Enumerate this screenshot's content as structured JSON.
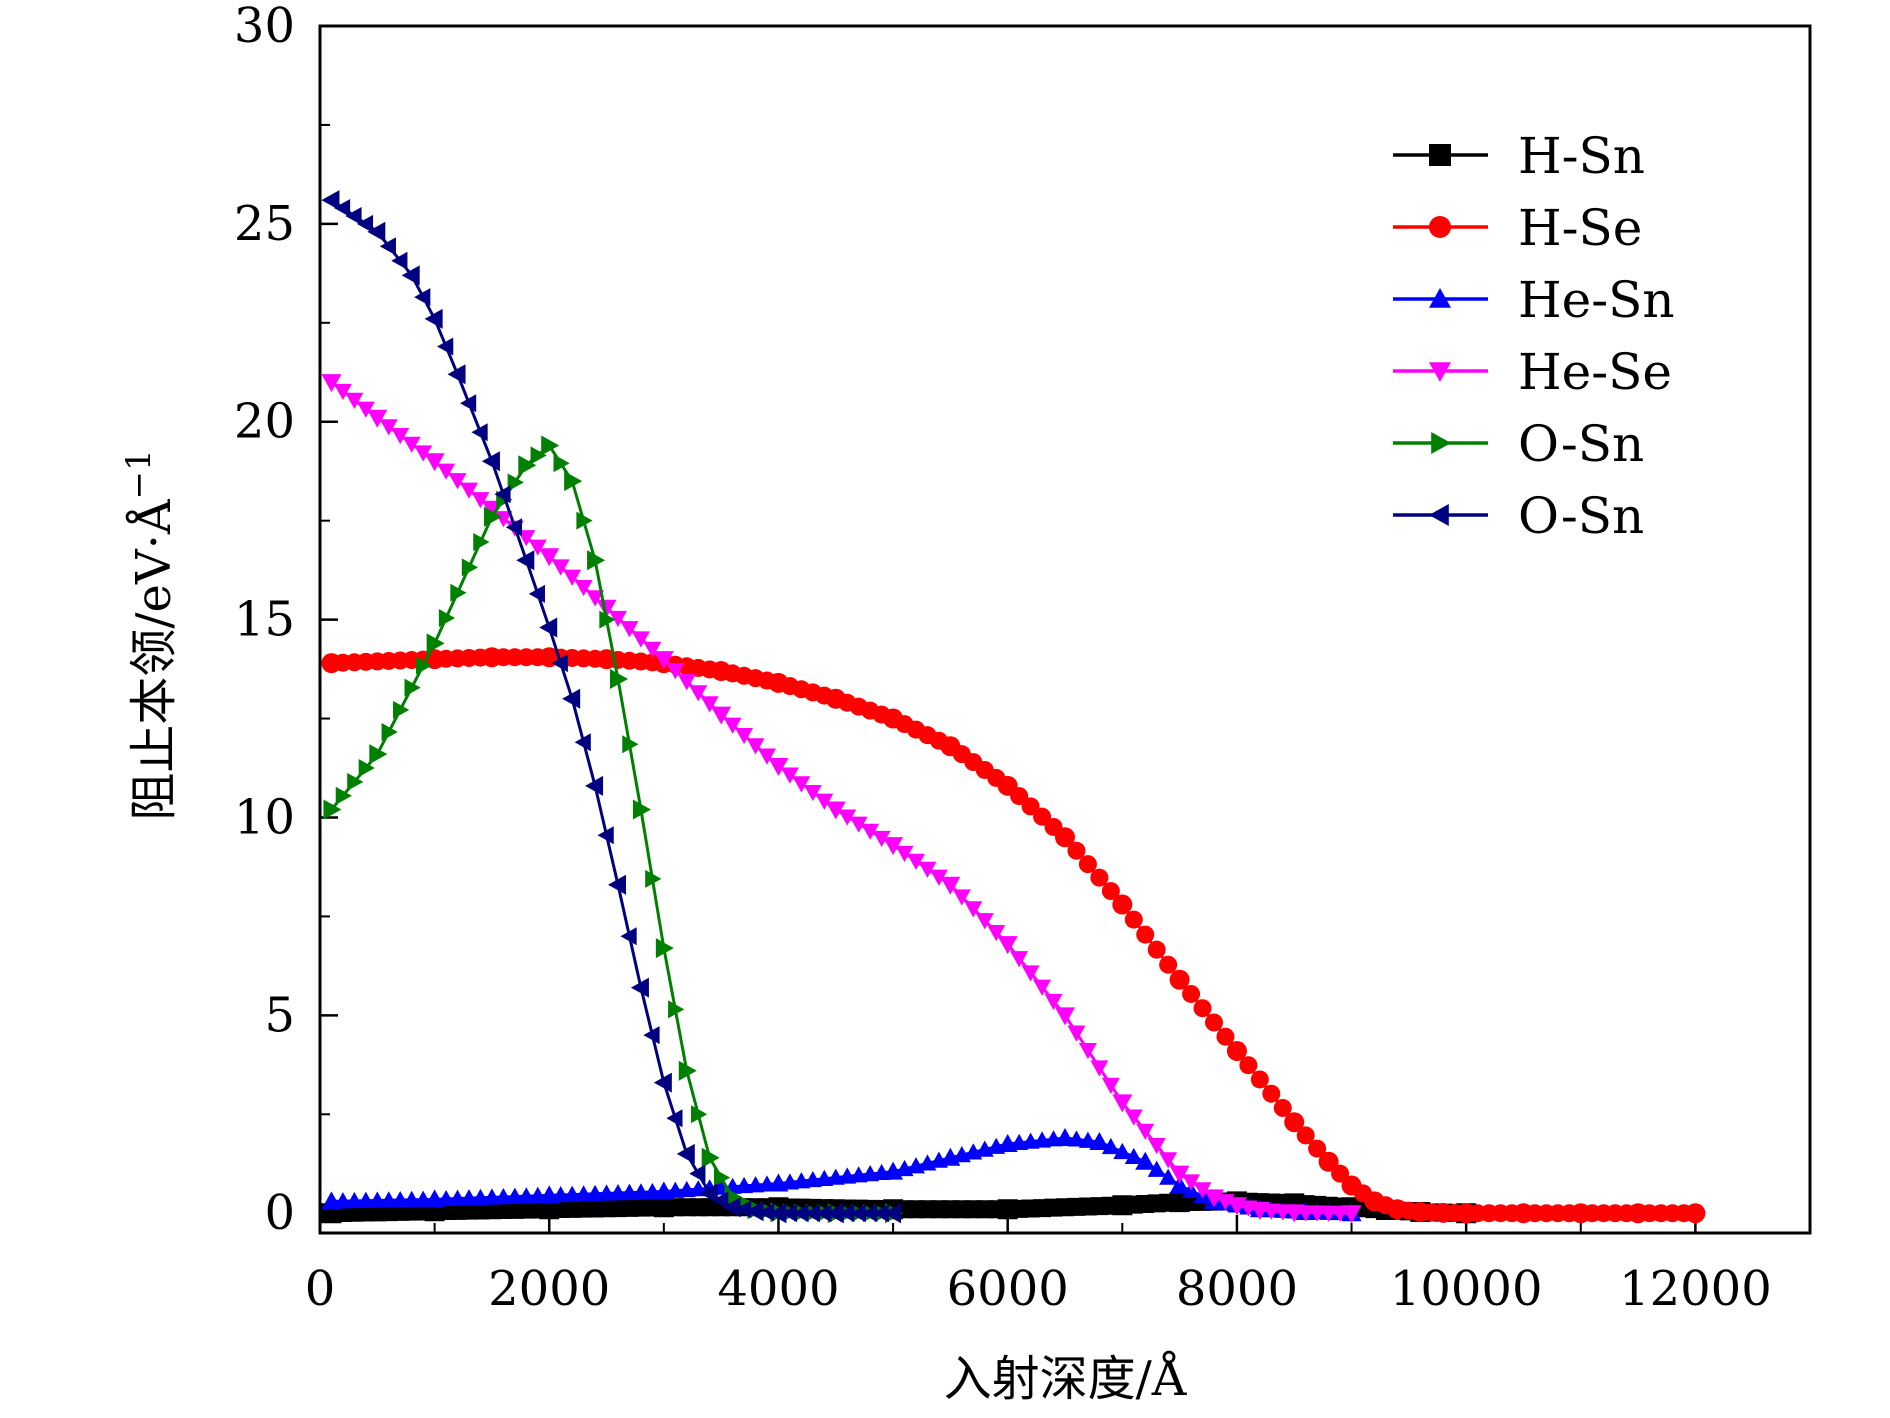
{
  "chart_data": {
    "type": "line",
    "title": "",
    "xlabel": "入射深度/Å",
    "ylabel": "阻止本领/eV·Å",
    "ylabel_superscript": "−1",
    "xlim": [
      0,
      13000
    ],
    "ylim": [
      -0.5,
      30
    ],
    "xticks": [
      0,
      2000,
      4000,
      6000,
      8000,
      10000,
      12000
    ],
    "xtick_labels": [
      "0",
      "2000",
      "4000",
      "6000",
      "8000",
      "10000",
      "12000"
    ],
    "yticks": [
      0,
      5,
      10,
      15,
      20,
      25,
      30
    ],
    "ytick_labels": [
      "0",
      "5",
      "10",
      "15",
      "20",
      "25",
      "30"
    ],
    "grid": false,
    "legend_position": "top-right",
    "series": [
      {
        "name": "H-Sn",
        "color": "#000000",
        "marker": "square",
        "x": [
          100,
          1000,
          2000,
          3000,
          4000,
          5000,
          6000,
          7000,
          7500,
          8000,
          8500,
          9000,
          9300,
          9600,
          10000
        ],
        "y": [
          0.0,
          0.05,
          0.1,
          0.15,
          0.15,
          0.1,
          0.1,
          0.2,
          0.28,
          0.3,
          0.25,
          0.15,
          0.08,
          0.03,
          0.0
        ]
      },
      {
        "name": "H-Se",
        "color": "#ff0000",
        "marker": "circle",
        "x": [
          100,
          1000,
          1500,
          2000,
          2500,
          3000,
          3500,
          4000,
          4500,
          5000,
          5500,
          6000,
          6500,
          7000,
          7500,
          8000,
          8500,
          8800,
          9000,
          9200,
          9400,
          9600,
          9800,
          10000,
          10500,
          11000,
          11500,
          12000
        ],
        "y": [
          13.9,
          14.0,
          14.05,
          14.05,
          14.0,
          13.9,
          13.7,
          13.4,
          13.0,
          12.5,
          11.8,
          10.8,
          9.5,
          7.8,
          5.9,
          4.1,
          2.3,
          1.3,
          0.7,
          0.3,
          0.1,
          0.03,
          0.01,
          0.0,
          0.0,
          0.0,
          0.0,
          0.0
        ]
      },
      {
        "name": "He-Sn",
        "color": "#0000ff",
        "marker": "triangle-up",
        "x": [
          100,
          1000,
          2000,
          3000,
          4000,
          5000,
          5500,
          6000,
          6500,
          6800,
          7200,
          7500,
          7800,
          8200,
          8600,
          9000
        ],
        "y": [
          0.3,
          0.35,
          0.45,
          0.55,
          0.75,
          1.05,
          1.4,
          1.75,
          1.9,
          1.8,
          1.3,
          0.7,
          0.3,
          0.1,
          0.03,
          0.0
        ]
      },
      {
        "name": "He-Se",
        "color": "#ff00ff",
        "marker": "triangle-down",
        "x": [
          100,
          500,
          1000,
          1500,
          2000,
          2500,
          3000,
          3500,
          4000,
          4500,
          5000,
          5500,
          6000,
          6500,
          7000,
          7500,
          7800,
          8000,
          8200,
          8500,
          9000
        ],
        "y": [
          21.0,
          20.1,
          19.0,
          17.8,
          16.6,
          15.3,
          14.0,
          12.6,
          11.3,
          10.2,
          9.3,
          8.3,
          6.8,
          5.0,
          2.8,
          1.0,
          0.4,
          0.2,
          0.08,
          0.02,
          0.0
        ]
      },
      {
        "name": "O-Sn",
        "color": "#008000",
        "marker": "triangle-right",
        "x": [
          100,
          500,
          1000,
          1500,
          1800,
          2000,
          2200,
          2400,
          2600,
          2800,
          3000,
          3200,
          3400,
          3600,
          3800,
          4000,
          4500,
          5000
        ],
        "y": [
          10.2,
          11.6,
          14.4,
          17.6,
          18.9,
          19.4,
          18.5,
          16.5,
          13.5,
          10.2,
          6.7,
          3.6,
          1.4,
          0.4,
          0.1,
          0.02,
          0.0,
          0.0
        ]
      },
      {
        "name": "O-Sn",
        "color": "#000080",
        "marker": "triangle-left",
        "x": [
          100,
          500,
          800,
          1000,
          1200,
          1500,
          1800,
          2000,
          2200,
          2400,
          2600,
          2800,
          3000,
          3200,
          3400,
          3600,
          3800,
          4000,
          4500,
          5000
        ],
        "y": [
          25.6,
          24.8,
          23.7,
          22.6,
          21.2,
          19.0,
          16.5,
          14.8,
          13.0,
          10.8,
          8.3,
          5.7,
          3.3,
          1.5,
          0.5,
          0.15,
          0.05,
          0.0,
          0.0,
          0.0
        ]
      }
    ]
  }
}
